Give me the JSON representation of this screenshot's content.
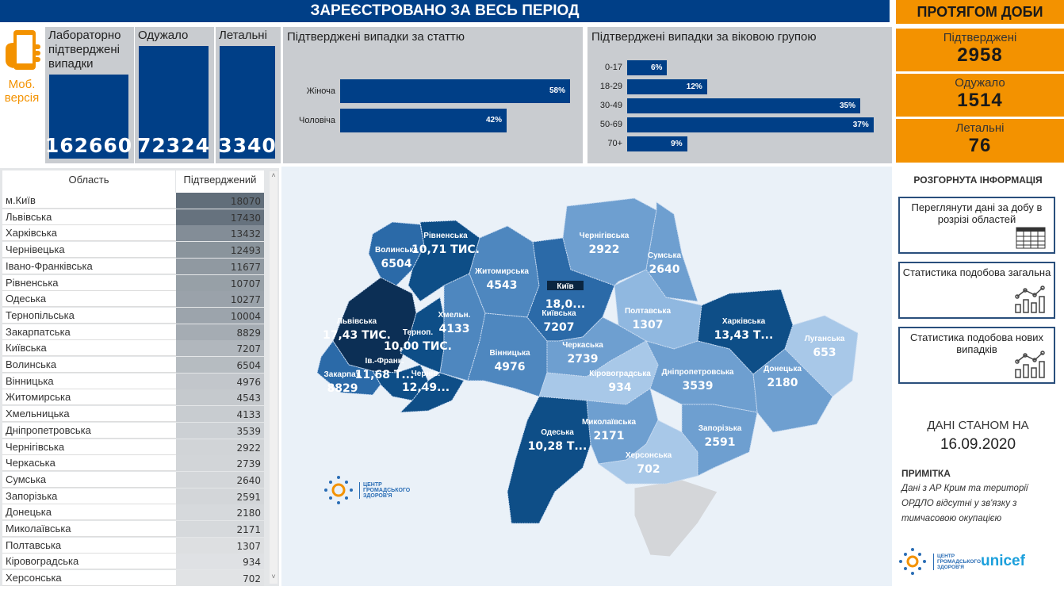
{
  "header": {
    "title": "ЗАРЕЄСТРОВАНО ЗА ВЕСЬ ПЕРІОД",
    "day_title": "ПРОТЯГОМ ДОБИ"
  },
  "mobile": {
    "icon": "smartphone-hand-icon",
    "line1": "Моб.",
    "line2": "версія"
  },
  "totals": [
    {
      "label": "Лабораторно підтверджені випадки",
      "value": "162660"
    },
    {
      "label": "Одужало",
      "value": "72324"
    },
    {
      "label": "Летальні",
      "value": "3340"
    }
  ],
  "gender_chart": {
    "type": "bar",
    "title": "Підтверджені випадки за статтю",
    "categories": [
      "Жіноча",
      "Чоловіча"
    ],
    "values": [
      58,
      42
    ],
    "labels": [
      "58%",
      "42%"
    ]
  },
  "age_chart": {
    "type": "bar",
    "title": "Підтверджені випадки за віковою групою",
    "categories": [
      "0-17",
      "18-29",
      "30-49",
      "50-69",
      "70+"
    ],
    "values": [
      6,
      12,
      35,
      37,
      9
    ],
    "labels": [
      "6%",
      "12%",
      "35%",
      "37%",
      "9%"
    ]
  },
  "day": [
    {
      "label": "Підтверджені",
      "value": "2958"
    },
    {
      "label": "Одужало",
      "value": "1514"
    },
    {
      "label": "Летальні",
      "value": "76"
    }
  ],
  "table": {
    "headers": [
      "Область",
      "Підтверджений"
    ],
    "rows": [
      [
        "м.Київ",
        18070
      ],
      [
        "Львівська",
        17430
      ],
      [
        "Харківська",
        13432
      ],
      [
        "Чернівецька",
        12493
      ],
      [
        "Івано-Франківська",
        11677
      ],
      [
        "Рівненська",
        10707
      ],
      [
        "Одеська",
        10277
      ],
      [
        "Тернопільська",
        10004
      ],
      [
        "Закарпатська",
        8829
      ],
      [
        "Київська",
        7207
      ],
      [
        "Волинська",
        6504
      ],
      [
        "Вінницька",
        4976
      ],
      [
        "Житомирська",
        4543
      ],
      [
        "Хмельницька",
        4133
      ],
      [
        "Дніпропетровська",
        3539
      ],
      [
        "Чернігівська",
        2922
      ],
      [
        "Черкаська",
        2739
      ],
      [
        "Сумська",
        2640
      ],
      [
        "Запорізька",
        2591
      ],
      [
        "Донецька",
        2180
      ],
      [
        "Миколаївська",
        2171
      ],
      [
        "Полтавська",
        1307
      ],
      [
        "Кіровоградська",
        934
      ],
      [
        "Херсонська",
        702
      ]
    ]
  },
  "map": {
    "city_label": "Київ",
    "city_value": "18,0...",
    "regions": [
      {
        "name": "Волинська",
        "value": "6504",
        "n": 6504
      },
      {
        "name": "Рівненська",
        "value": "10,71 ТИС.",
        "n": 10707
      },
      {
        "name": "Львівська",
        "value": "17,43 ТИС.",
        "n": 17430
      },
      {
        "name": "Терноп.",
        "value": "10,00 ТИС.",
        "n": 10004
      },
      {
        "name": "Ів.-Франк.",
        "value": "11,68 Т...",
        "n": 11677
      },
      {
        "name": "Чернів.",
        "value": "12,49...",
        "n": 12493
      },
      {
        "name": "Закарпат.",
        "value": "8829",
        "n": 8829
      },
      {
        "name": "Хмельн.",
        "value": "4133",
        "n": 4133
      },
      {
        "name": "Житомирська",
        "value": "4543",
        "n": 4543
      },
      {
        "name": "Вінницька",
        "value": "4976",
        "n": 4976
      },
      {
        "name": "Київська",
        "value": "7207",
        "n": 7207
      },
      {
        "name": "Чернігівська",
        "value": "2922",
        "n": 2922
      },
      {
        "name": "Сумська",
        "value": "2640",
        "n": 2640
      },
      {
        "name": "Полтавська",
        "value": "1307",
        "n": 1307
      },
      {
        "name": "Харківська",
        "value": "13,43 Т...",
        "n": 13432
      },
      {
        "name": "Луганська",
        "value": "653",
        "n": 653
      },
      {
        "name": "Донецька",
        "value": "2180",
        "n": 2180
      },
      {
        "name": "Дніпропетровська",
        "value": "3539",
        "n": 3539
      },
      {
        "name": "Черкаська",
        "value": "2739",
        "n": 2739
      },
      {
        "name": "Кіровоградська",
        "value": "934",
        "n": 934
      },
      {
        "name": "Одеська",
        "value": "10,28 Т...",
        "n": 10277
      },
      {
        "name": "Миколаївська",
        "value": "2171",
        "n": 2171
      },
      {
        "name": "Херсонська",
        "value": "702",
        "n": 702
      },
      {
        "name": "Запорізька",
        "value": "2591",
        "n": 2591
      }
    ],
    "logo_text": "ЦЕНТР ГРОМАДСЬКОГО ЗДОРОВ'Я"
  },
  "right": {
    "section_title": "РОЗГОРНУТА ІНФОРМАЦІЯ",
    "buttons": [
      {
        "label": "Переглянути дані за добу в розрізі областей",
        "icon": "table-icon"
      },
      {
        "label": "Статистика подобова загальна",
        "icon": "chart-icon"
      },
      {
        "label": "Статистика подобова нових випадків",
        "icon": "chart-icon"
      }
    ],
    "date_label": "ДАНІ СТАНОМ НА",
    "date": "16.09.2020",
    "note_title": "ПРИМІТКА",
    "note": "Дані з АР Крим та території ОРДЛО відсутні у зв'язку з тимчасовою окупацією",
    "logo_text": "ЦЕНТР ГРОМАДСЬКОГО ЗДОРОВ'Я",
    "unicef": "unicef"
  },
  "colors": {
    "brand_blue": "#003f87",
    "orange": "#f39200",
    "panel_gray": "#c9ccd0"
  }
}
